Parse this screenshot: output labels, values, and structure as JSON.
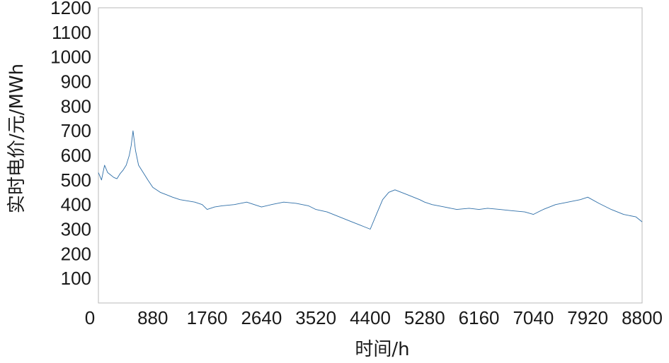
{
  "chart_data": {
    "type": "line",
    "title": "",
    "xlabel": "时间/h",
    "ylabel": "实时电价/元/MWh",
    "xlim": [
      0,
      8800
    ],
    "ylim": [
      0,
      1200
    ],
    "x_ticks": [
      0,
      880,
      1760,
      2640,
      3520,
      4400,
      5280,
      6160,
      7040,
      7920,
      8800
    ],
    "x_tick_labels": [
      "0",
      "880",
      "1760",
      "2640",
      "3520",
      "4400",
      "5280",
      "6160",
      "7040",
      "7920",
      "8800"
    ],
    "y_ticks": [
      100,
      200,
      300,
      400,
      500,
      600,
      700,
      800,
      900,
      1000,
      1100,
      1200
    ],
    "y_tick_labels": [
      "100",
      "200",
      "300",
      "400",
      "500",
      "600",
      "700",
      "800",
      "900",
      "1000",
      "1100",
      "1200"
    ],
    "grid": false,
    "series": [
      {
        "color": "#2f6fa8",
        "x": [
          0,
          50,
          100,
          150,
          200,
          250,
          300,
          350,
          400,
          450,
          500,
          530,
          560,
          600,
          650,
          700,
          750,
          800,
          880,
          1000,
          1100,
          1200,
          1320,
          1440,
          1560,
          1680,
          1760,
          1880,
          2000,
          2200,
          2400,
          2640,
          2800,
          3000,
          3200,
          3400,
          3520,
          3700,
          3900,
          4100,
          4300,
          4400,
          4500,
          4600,
          4700,
          4800,
          5000,
          5200,
          5280,
          5400,
          5600,
          5800,
          6000,
          6160,
          6300,
          6500,
          6700,
          6900,
          7040,
          7200,
          7400,
          7600,
          7800,
          7920,
          8100,
          8300,
          8500,
          8700,
          8800
        ],
        "y": [
          530,
          500,
          560,
          530,
          520,
          510,
          505,
          525,
          540,
          560,
          600,
          640,
          700,
          620,
          560,
          540,
          520,
          500,
          470,
          450,
          440,
          430,
          420,
          415,
          410,
          400,
          380,
          390,
          395,
          400,
          410,
          390,
          400,
          410,
          405,
          395,
          380,
          370,
          350,
          330,
          310,
          300,
          360,
          420,
          450,
          460,
          440,
          420,
          410,
          400,
          390,
          380,
          385,
          380,
          385,
          380,
          375,
          370,
          360,
          380,
          400,
          410,
          420,
          430,
          405,
          380,
          360,
          350,
          330
        ]
      }
    ]
  }
}
